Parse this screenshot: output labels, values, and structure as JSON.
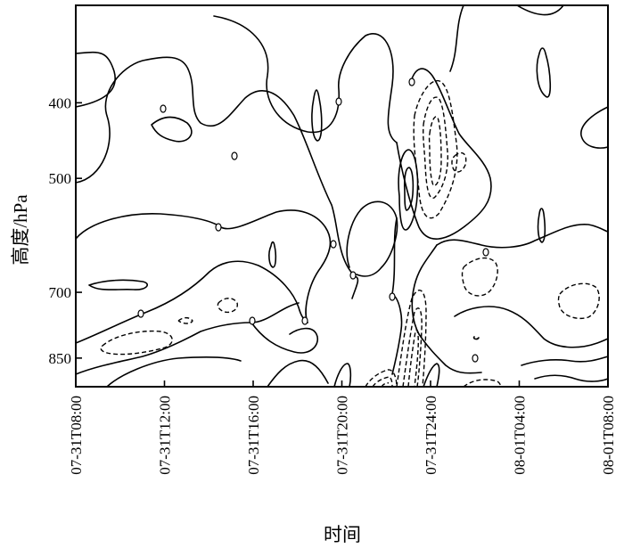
{
  "chart_data": {
    "type": "contour",
    "xlabel": "时间",
    "ylabel": "高度/hPa",
    "x_ticks": [
      "07-31T08:00",
      "07-31T12:00",
      "07-31T16:00",
      "07-31T20:00",
      "07-31T24:00",
      "08-01T04:00",
      "08-01T08:00"
    ],
    "y_ticks": [
      400,
      500,
      700,
      850
    ],
    "y_scale": "log-pressure (inverted)",
    "ylim": [
      300,
      925
    ],
    "xlim": [
      "07-31T08:00",
      "08-01T08:00"
    ],
    "grid": false,
    "legend": "none",
    "contour_styles": {
      "positive": "solid",
      "negative": "dashed"
    },
    "colors": {
      "line": "#000000",
      "background": "#ffffff"
    }
  }
}
